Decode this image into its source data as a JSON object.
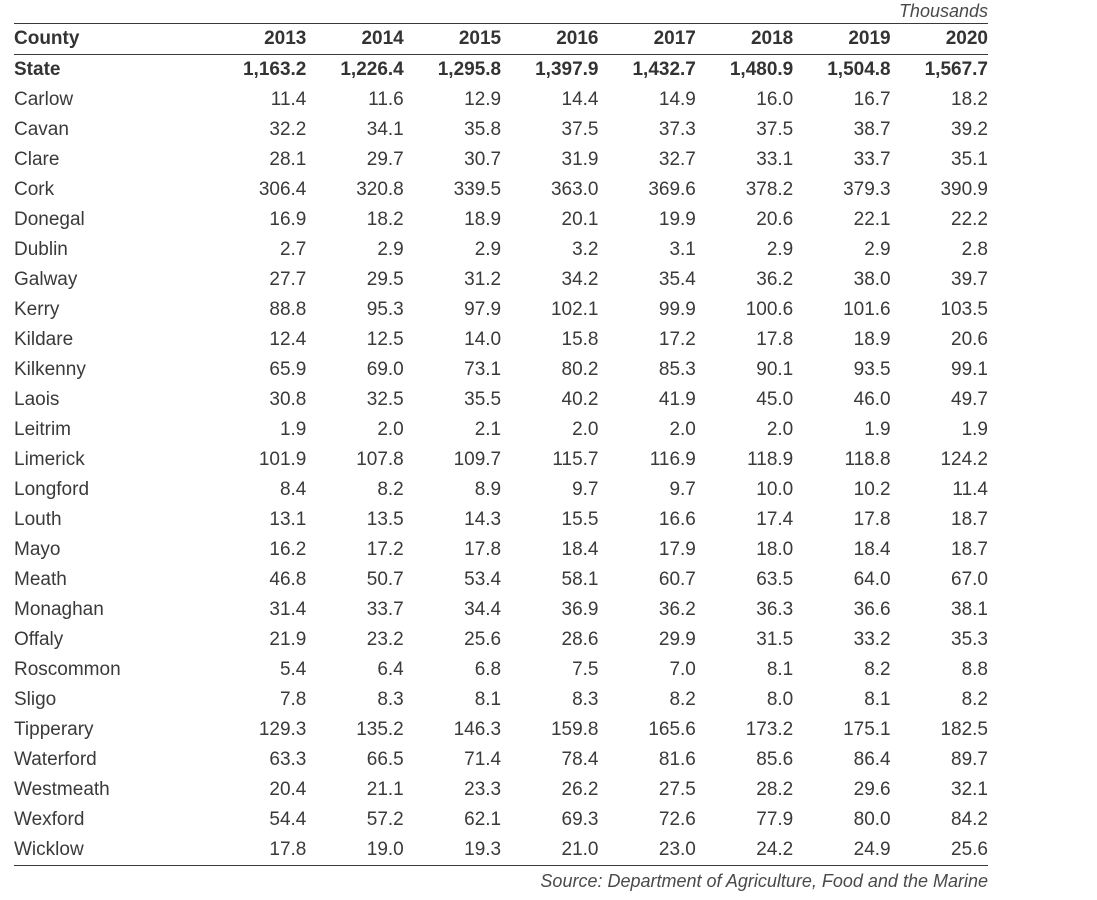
{
  "table": {
    "units": "Thousands",
    "source": "Source: Department of Agriculture, Food and the Marine",
    "headers": [
      "County",
      "2013",
      "2014",
      "2015",
      "2016",
      "2017",
      "2018",
      "2019",
      "2020"
    ],
    "rows": [
      [
        "State",
        "1,163.2",
        "1,226.4",
        "1,295.8",
        "1,397.9",
        "1,432.7",
        "1,480.9",
        "1,504.8",
        "1,567.7"
      ],
      [
        "Carlow",
        "11.4",
        "11.6",
        "12.9",
        "14.4",
        "14.9",
        "16.0",
        "16.7",
        "18.2"
      ],
      [
        "Cavan",
        "32.2",
        "34.1",
        "35.8",
        "37.5",
        "37.3",
        "37.5",
        "38.7",
        "39.2"
      ],
      [
        "Clare",
        "28.1",
        "29.7",
        "30.7",
        "31.9",
        "32.7",
        "33.1",
        "33.7",
        "35.1"
      ],
      [
        "Cork",
        "306.4",
        "320.8",
        "339.5",
        "363.0",
        "369.6",
        "378.2",
        "379.3",
        "390.9"
      ],
      [
        "Donegal",
        "16.9",
        "18.2",
        "18.9",
        "20.1",
        "19.9",
        "20.6",
        "22.1",
        "22.2"
      ],
      [
        "Dublin",
        "2.7",
        "2.9",
        "2.9",
        "3.2",
        "3.1",
        "2.9",
        "2.9",
        "2.8"
      ],
      [
        "Galway",
        "27.7",
        "29.5",
        "31.2",
        "34.2",
        "35.4",
        "36.2",
        "38.0",
        "39.7"
      ],
      [
        "Kerry",
        "88.8",
        "95.3",
        "97.9",
        "102.1",
        "99.9",
        "100.6",
        "101.6",
        "103.5"
      ],
      [
        "Kildare",
        "12.4",
        "12.5",
        "14.0",
        "15.8",
        "17.2",
        "17.8",
        "18.9",
        "20.6"
      ],
      [
        "Kilkenny",
        "65.9",
        "69.0",
        "73.1",
        "80.2",
        "85.3",
        "90.1",
        "93.5",
        "99.1"
      ],
      [
        "Laois",
        "30.8",
        "32.5",
        "35.5",
        "40.2",
        "41.9",
        "45.0",
        "46.0",
        "49.7"
      ],
      [
        "Leitrim",
        "1.9",
        "2.0",
        "2.1",
        "2.0",
        "2.0",
        "2.0",
        "1.9",
        "1.9"
      ],
      [
        "Limerick",
        "101.9",
        "107.8",
        "109.7",
        "115.7",
        "116.9",
        "118.9",
        "118.8",
        "124.2"
      ],
      [
        "Longford",
        "8.4",
        "8.2",
        "8.9",
        "9.7",
        "9.7",
        "10.0",
        "10.2",
        "11.4"
      ],
      [
        "Louth",
        "13.1",
        "13.5",
        "14.3",
        "15.5",
        "16.6",
        "17.4",
        "17.8",
        "18.7"
      ],
      [
        "Mayo",
        "16.2",
        "17.2",
        "17.8",
        "18.4",
        "17.9",
        "18.0",
        "18.4",
        "18.7"
      ],
      [
        "Meath",
        "46.8",
        "50.7",
        "53.4",
        "58.1",
        "60.7",
        "63.5",
        "64.0",
        "67.0"
      ],
      [
        "Monaghan",
        "31.4",
        "33.7",
        "34.4",
        "36.9",
        "36.2",
        "36.3",
        "36.6",
        "38.1"
      ],
      [
        "Offaly",
        "21.9",
        "23.2",
        "25.6",
        "28.6",
        "29.9",
        "31.5",
        "33.2",
        "35.3"
      ],
      [
        "Roscommon",
        "5.4",
        "6.4",
        "6.8",
        "7.5",
        "7.0",
        "8.1",
        "8.2",
        "8.8"
      ],
      [
        "Sligo",
        "7.8",
        "8.3",
        "8.1",
        "8.3",
        "8.2",
        "8.0",
        "8.1",
        "8.2"
      ],
      [
        "Tipperary",
        "129.3",
        "135.2",
        "146.3",
        "159.8",
        "165.6",
        "173.2",
        "175.1",
        "182.5"
      ],
      [
        "Waterford",
        "63.3",
        "66.5",
        "71.4",
        "78.4",
        "81.6",
        "85.6",
        "86.4",
        "89.7"
      ],
      [
        "Westmeath",
        "20.4",
        "21.1",
        "23.3",
        "26.2",
        "27.5",
        "28.2",
        "29.6",
        "32.1"
      ],
      [
        "Wexford",
        "54.4",
        "57.2",
        "62.1",
        "69.3",
        "72.6",
        "77.9",
        "80.0",
        "84.2"
      ],
      [
        "Wicklow",
        "17.8",
        "19.0",
        "19.3",
        "21.0",
        "23.0",
        "24.2",
        "24.9",
        "25.6"
      ]
    ]
  }
}
